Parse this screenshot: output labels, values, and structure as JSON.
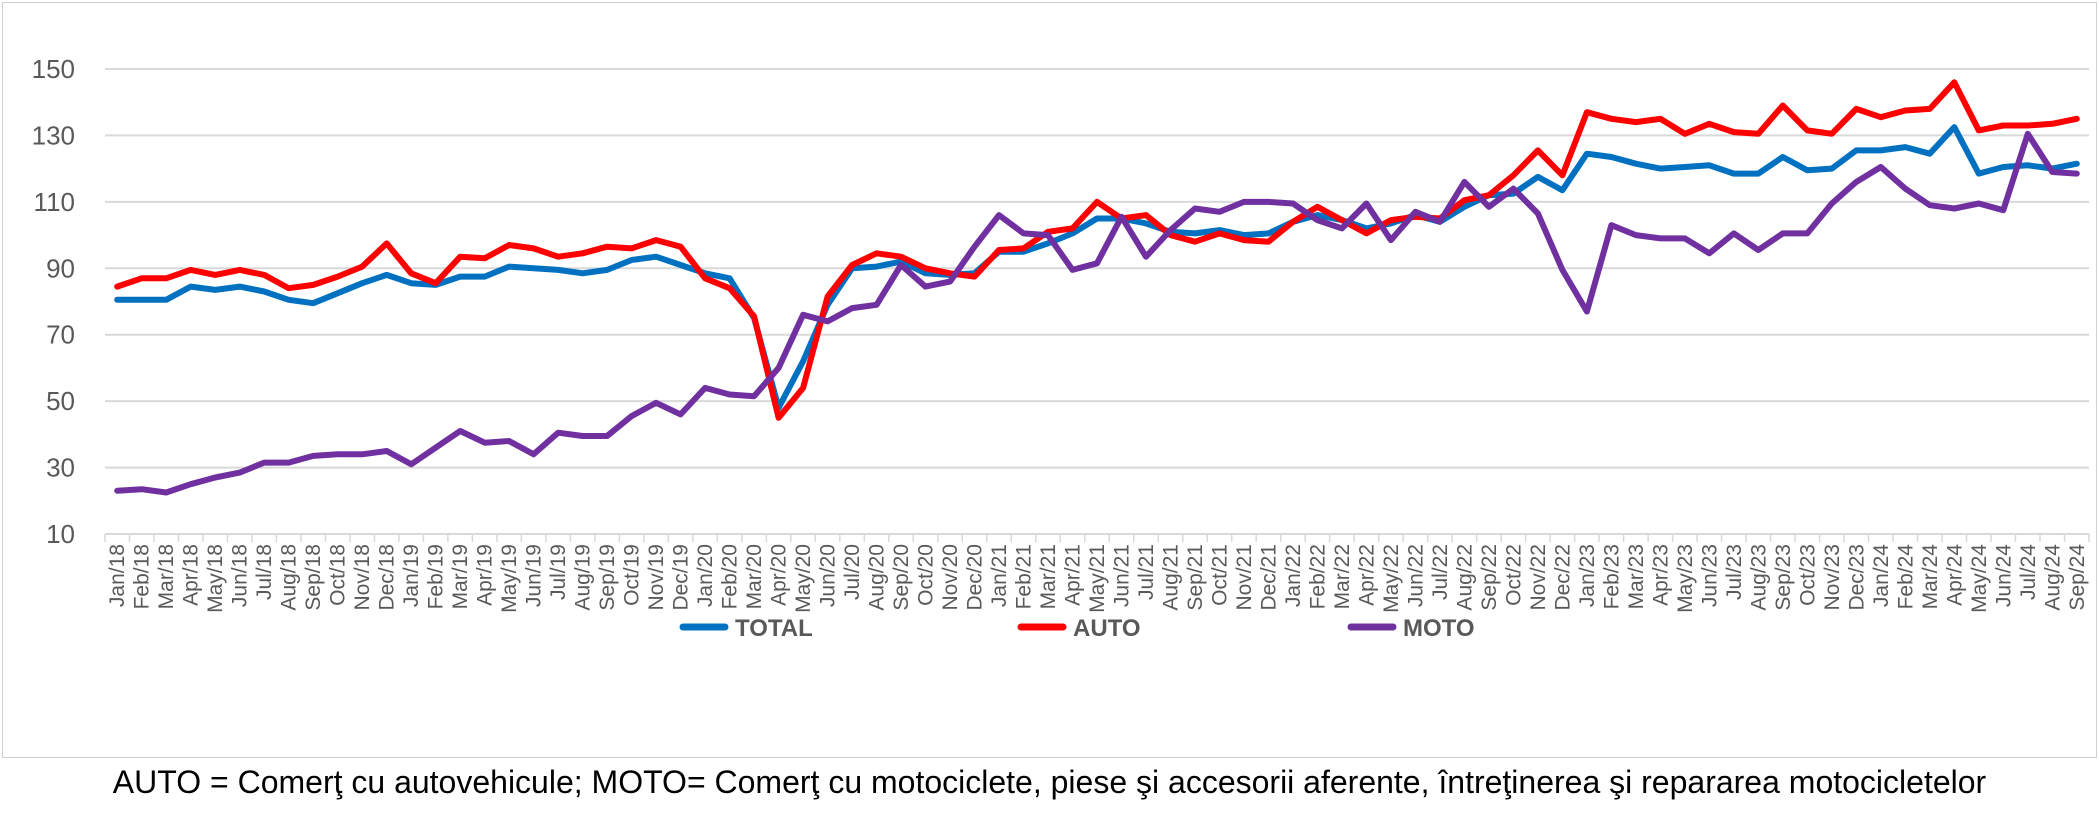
{
  "footnote": "AUTO = Comerţ cu autovehicule; MOTO= Comerţ cu motociclete, piese şi accesorii aferente, întreţinerea şi repararea motocicletelor",
  "colors": {
    "TOTAL": "#0070C0",
    "AUTO": "#FF0000",
    "MOTO": "#7030A0",
    "grid": "#d9d9d9",
    "axis": "#595959"
  },
  "chart_data": {
    "type": "line",
    "title": "",
    "xlabel": "",
    "ylabel": "",
    "ylim": [
      10,
      150
    ],
    "yticks": [
      10,
      30,
      50,
      70,
      90,
      110,
      130,
      150
    ],
    "grid": true,
    "legend_position": "bottom",
    "categories": [
      "Jan/18",
      "Feb/18",
      "Mar/18",
      "Apr/18",
      "May/18",
      "Jun/18",
      "Jul/18",
      "Aug/18",
      "Sep/18",
      "Oct/18",
      "Nov/18",
      "Dec/18",
      "Jan/19",
      "Feb/19",
      "Mar/19",
      "Apr/19",
      "May/19",
      "Jun/19",
      "Jul/19",
      "Aug/19",
      "Sep/19",
      "Oct/19",
      "Nov/19",
      "Dec/19",
      "Jan/20",
      "Feb/20",
      "Mar/20",
      "Apr/20",
      "May/20",
      "Jun/20",
      "Jul/20",
      "Aug/20",
      "Sep/20",
      "Oct/20",
      "Nov/20",
      "Dec/20",
      "Jan/21",
      "Feb/21",
      "Mar/21",
      "Apr/21",
      "May/21",
      "Jun/21",
      "Jul/21",
      "Aug/21",
      "Sep/21",
      "Oct/21",
      "Nov/21",
      "Dec/21",
      "Jan/22",
      "Feb/22",
      "Mar/22",
      "Apr/22",
      "May/22",
      "Jun/22",
      "Jul/22",
      "Aug/22",
      "Sep/22",
      "Oct/22",
      "Nov/22",
      "Dec/22",
      "Jan/23",
      "Feb/23",
      "Mar/23",
      "Apr/23",
      "May/23",
      "Jun/23",
      "Jul/23",
      "Aug/23",
      "Sep/23",
      "Oct/23",
      "Nov/23",
      "Dec/23",
      "Jan/24",
      "Feb/24",
      "Mar/24",
      "Apr/24",
      "May/24",
      "Jun/24",
      "Jul/24",
      "Aug/24",
      "Sep/24"
    ],
    "series": [
      {
        "name": "TOTAL",
        "color": "#0070C0",
        "values": [
          80.5,
          80.5,
          80.5,
          84.5,
          83.5,
          84.5,
          83,
          80.5,
          79.5,
          82.5,
          85.5,
          88,
          85.5,
          85,
          87.5,
          87.5,
          90.5,
          90,
          89.5,
          88.5,
          89.5,
          92.5,
          93.5,
          91,
          88.5,
          87,
          75,
          48,
          62,
          79,
          90,
          90.5,
          92,
          88.5,
          88,
          88.5,
          95,
          95,
          97.5,
          100.5,
          105,
          105,
          103.5,
          101,
          100.5,
          101.5,
          100,
          100.5,
          104,
          106,
          104.5,
          102,
          103.5,
          106,
          104,
          108.5,
          112,
          112.5,
          117.5,
          113.5,
          124.5,
          123.5,
          121.5,
          120,
          120.5,
          121,
          118.5,
          118.5,
          123.5,
          119.5,
          120,
          125.5,
          125.5,
          126.5,
          124.5,
          132.5,
          118.5,
          120.5,
          121,
          120,
          121.5
        ]
      },
      {
        "name": "AUTO",
        "color": "#FF0000",
        "values": [
          84.5,
          87,
          87,
          89.5,
          88,
          89.5,
          88,
          84,
          85,
          87.5,
          90.5,
          97.5,
          88.5,
          85.5,
          93.5,
          93,
          97,
          96,
          93.5,
          94.5,
          96.5,
          96,
          98.5,
          96.5,
          87,
          84,
          75.5,
          45,
          54,
          81.5,
          91,
          94.5,
          93.5,
          90,
          88.5,
          87.5,
          95.5,
          96,
          101,
          102,
          110,
          105,
          106,
          100,
          98,
          100.5,
          98.5,
          98,
          104,
          108.5,
          104.5,
          100.5,
          104.5,
          105.5,
          105,
          110.5,
          112,
          118,
          125.5,
          118,
          137,
          135,
          134,
          135,
          130.5,
          133.5,
          131,
          130.5,
          139,
          131.5,
          130.5,
          138,
          135.5,
          137.5,
          138,
          146,
          131.5,
          133,
          133,
          133.5,
          135
        ]
      },
      {
        "name": "MOTO",
        "color": "#7030A0",
        "values": [
          23,
          23.5,
          22.5,
          25,
          27,
          28.5,
          31.5,
          31.5,
          33.5,
          34,
          34,
          35,
          31,
          36,
          41,
          37.5,
          38,
          34,
          40.5,
          39.5,
          39.5,
          45.5,
          49.5,
          46,
          54,
          52,
          51.5,
          60,
          76,
          74,
          78,
          79,
          91,
          84.5,
          86,
          96.5,
          106,
          100.5,
          100,
          89.5,
          91.5,
          105.5,
          93.5,
          101.5,
          108,
          107,
          110,
          110,
          109.5,
          104.5,
          102,
          109.5,
          98.5,
          107,
          104,
          116,
          108.5,
          114,
          106.5,
          89.5,
          77,
          103,
          100,
          99,
          99,
          94.5,
          100.5,
          95.5,
          100.5,
          100.5,
          109.5,
          116,
          120.5,
          114,
          109,
          108,
          109.5,
          107.5,
          130.5,
          119,
          118.5
        ]
      }
    ]
  }
}
